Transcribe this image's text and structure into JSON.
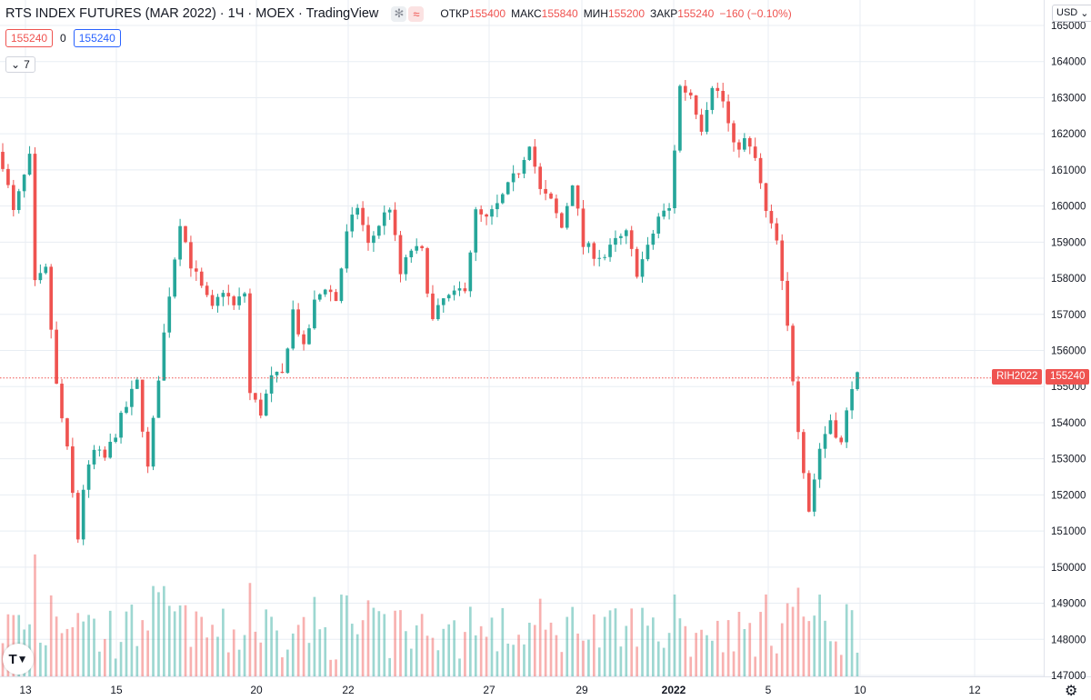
{
  "header": {
    "title": "RTS INDEX FUTURES (MAR 2022) · 1Ч · MOEX · TradingView",
    "icons": [
      "asterisk-icon",
      "wave-icon"
    ],
    "ohlc": {
      "open_label": "ОТКР",
      "open": "155400",
      "high_label": "МАКС",
      "high": "155840",
      "low_label": "МИН",
      "low": "155200",
      "close_label": "ЗАКР",
      "close": "155240",
      "change": "−160 (−0.10%)"
    }
  },
  "price_boxes": {
    "sell": "155240",
    "spread": "0",
    "buy": "155240"
  },
  "indicator_toggle": "7",
  "currency": "USD",
  "last_price": {
    "symbol": "RIH2022",
    "value": "155240"
  },
  "colors": {
    "up": "#26a69a",
    "down": "#ef5350",
    "grid": "#e8edf3",
    "text": "#131722",
    "blue": "#2962ff"
  },
  "chart_data": {
    "type": "candlestick",
    "title": "RTS INDEX FUTURES (MAR 2022)",
    "interval": "1Ч",
    "exchange": "MOEX",
    "x_tick_labels": [
      "13",
      "15",
      "20",
      "22",
      "27",
      "29",
      "2022",
      "5",
      "10",
      "12"
    ],
    "y_tick_labels": [
      "147000",
      "148000",
      "149000",
      "150000",
      "151000",
      "152000",
      "153000",
      "154000",
      "155000",
      "156000",
      "157000",
      "158000",
      "159000",
      "160000",
      "161000",
      "162000",
      "163000",
      "164000",
      "165000"
    ],
    "ylim": [
      147000,
      165200
    ],
    "grid": true,
    "last_price_line": 155240,
    "close_path_keypoints": [
      [
        0,
        161200
      ],
      [
        2,
        159800
      ],
      [
        5,
        161300
      ],
      [
        6,
        157800
      ],
      [
        8,
        158200
      ],
      [
        10,
        155000
      ],
      [
        12,
        153200
      ],
      [
        14,
        150800
      ],
      [
        15,
        152200
      ],
      [
        17,
        153200
      ],
      [
        19,
        153000
      ],
      [
        22,
        154100
      ],
      [
        24,
        154800
      ],
      [
        25,
        155100
      ],
      [
        27,
        152700
      ],
      [
        29,
        155300
      ],
      [
        31,
        157600
      ],
      [
        33,
        159600
      ],
      [
        35,
        158400
      ],
      [
        37,
        157700
      ],
      [
        39,
        157100
      ],
      [
        41,
        157700
      ],
      [
        43,
        157200
      ],
      [
        45,
        157600
      ],
      [
        46,
        154800
      ],
      [
        48,
        154300
      ],
      [
        50,
        155200
      ],
      [
        52,
        155300
      ],
      [
        54,
        157100
      ],
      [
        56,
        156000
      ],
      [
        58,
        157300
      ],
      [
        60,
        157800
      ],
      [
        62,
        157400
      ],
      [
        64,
        159200
      ],
      [
        66,
        160000
      ],
      [
        68,
        158900
      ],
      [
        70,
        159500
      ],
      [
        72,
        160000
      ],
      [
        74,
        158100
      ],
      [
        76,
        158800
      ],
      [
        78,
        158700
      ],
      [
        80,
        156800
      ],
      [
        82,
        157400
      ],
      [
        84,
        157500
      ],
      [
        86,
        157800
      ],
      [
        88,
        159800
      ],
      [
        90,
        159600
      ],
      [
        92,
        160000
      ],
      [
        94,
        160500
      ],
      [
        96,
        161000
      ],
      [
        98,
        161800
      ],
      [
        100,
        160400
      ],
      [
        102,
        160100
      ],
      [
        104,
        159400
      ],
      [
        106,
        160700
      ],
      [
        108,
        158900
      ],
      [
        110,
        158700
      ],
      [
        112,
        158600
      ],
      [
        114,
        159000
      ],
      [
        116,
        159200
      ],
      [
        118,
        158200
      ],
      [
        120,
        158800
      ],
      [
        122,
        159700
      ],
      [
        124,
        159900
      ],
      [
        126,
        163300
      ],
      [
        128,
        163100
      ],
      [
        130,
        162200
      ],
      [
        132,
        163400
      ],
      [
        134,
        162900
      ],
      [
        136,
        161600
      ],
      [
        138,
        161800
      ],
      [
        140,
        161300
      ],
      [
        142,
        159800
      ],
      [
        144,
        159000
      ],
      [
        146,
        156600
      ],
      [
        148,
        153900
      ],
      [
        150,
        151600
      ],
      [
        152,
        153300
      ],
      [
        154,
        154100
      ],
      [
        156,
        153400
      ],
      [
        158,
        155100
      ],
      [
        159,
        155240
      ]
    ],
    "volume_note": "volume histogram at bottom, colored by candle direction"
  }
}
